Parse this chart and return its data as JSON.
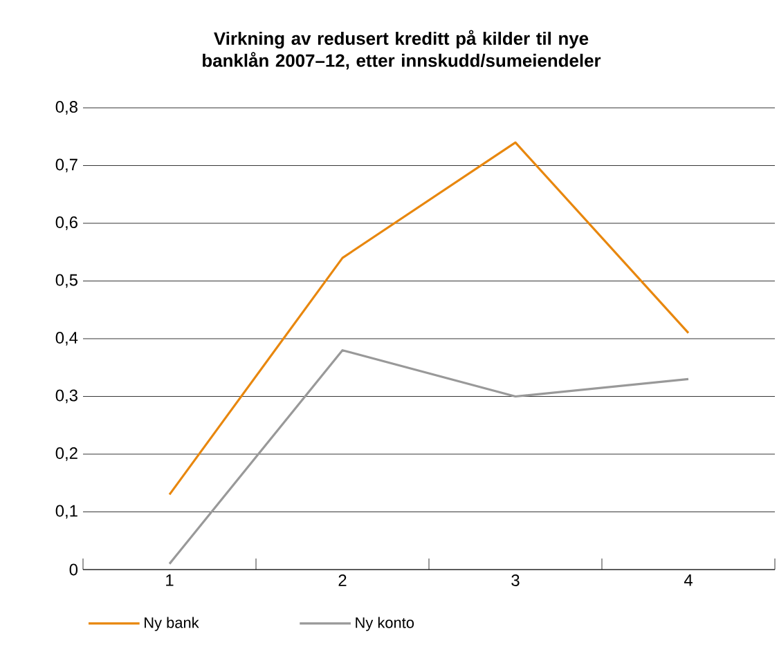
{
  "chart_data": {
    "type": "line",
    "title": "Virkning av redusert kreditt på kilder til nye banklån 2007–12, etter innskudd/sumeiendeler",
    "categories": [
      "1",
      "2",
      "3",
      "4"
    ],
    "series": [
      {
        "name": "Ny bank",
        "color": "#e8870e",
        "values": [
          0.13,
          0.54,
          0.74,
          0.41
        ]
      },
      {
        "name": "Ny konto",
        "color": "#999999",
        "values": [
          0.01,
          0.38,
          0.3,
          0.33
        ]
      }
    ],
    "ylim": [
      0,
      0.8
    ],
    "yticks": [
      {
        "value": 0,
        "label": "0"
      },
      {
        "value": 0.1,
        "label": "0,1"
      },
      {
        "value": 0.2,
        "label": "0,2"
      },
      {
        "value": 0.3,
        "label": "0,3"
      },
      {
        "value": 0.4,
        "label": "0,4"
      },
      {
        "value": 0.5,
        "label": "0,5"
      },
      {
        "value": 0.6,
        "label": "0,6"
      },
      {
        "value": 0.7,
        "label": "0,7"
      },
      {
        "value": 0.8,
        "label": "0,8"
      }
    ],
    "grid": "y",
    "legend": "bottom",
    "marker": "none",
    "line_style": "solid"
  }
}
